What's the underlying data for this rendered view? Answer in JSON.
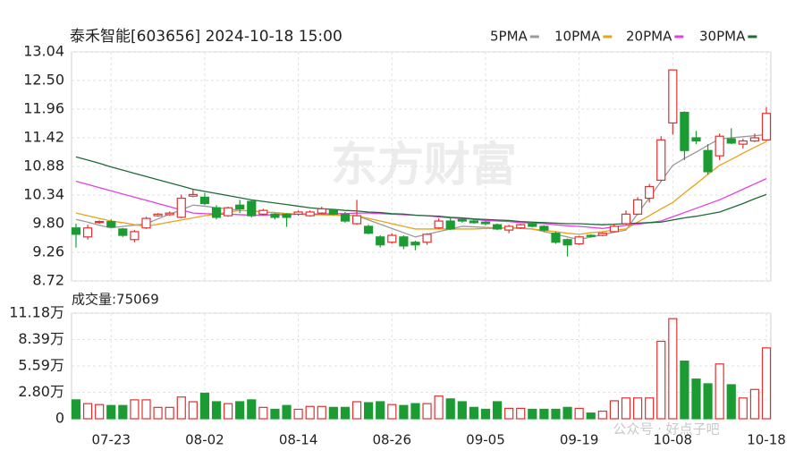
{
  "title": "泰禾智能[603656] 2024-10-18 15:00",
  "watermark": [
    "东方财富",
    "公众号 · 好点子吧"
  ],
  "chart_data": [
    {
      "type": "candlestick",
      "categories": [
        null,
        null,
        null,
        "07-23",
        null,
        null,
        null,
        null,
        null,
        null,
        null,
        "08-02",
        null,
        null,
        null,
        null,
        null,
        null,
        null,
        "08-14",
        null,
        null,
        null,
        null,
        null,
        null,
        null,
        "08-26",
        null,
        null,
        null,
        null,
        null,
        null,
        null,
        "09-05",
        null,
        null,
        null,
        null,
        null,
        null,
        null,
        "09-19",
        null,
        null,
        null,
        null,
        null,
        null,
        null,
        "10-08",
        null,
        null,
        null,
        null,
        null,
        null,
        null,
        "10-18"
      ],
      "open": [
        9.72,
        9.55,
        9.82,
        9.84,
        9.7,
        9.5,
        9.72,
        9.95,
        9.97,
        9.92,
        10.32,
        10.3,
        10.1,
        9.95,
        10.15,
        10.22,
        9.98,
        9.98,
        9.98,
        9.98,
        9.95,
        10.0,
        10.05,
        9.98,
        9.8,
        9.75,
        9.55,
        9.45,
        9.55,
        9.45,
        9.45,
        9.72,
        9.85,
        9.88,
        9.85,
        9.83,
        9.78,
        9.68,
        9.72,
        9.8,
        9.75,
        9.62,
        9.5,
        9.42,
        9.58,
        9.58,
        9.65,
        9.8,
        9.98,
        10.28,
        10.62,
        11.7,
        11.9,
        11.42,
        11.18,
        11.08,
        11.4,
        11.3,
        11.36,
        11.38
      ],
      "close": [
        9.6,
        9.72,
        9.84,
        9.74,
        9.58,
        9.65,
        9.9,
        9.98,
        10.0,
        10.28,
        10.35,
        10.18,
        9.92,
        10.1,
        10.08,
        9.95,
        10.05,
        9.92,
        9.92,
        10.02,
        10.02,
        10.08,
        9.98,
        9.85,
        9.95,
        9.62,
        9.4,
        9.58,
        9.38,
        9.4,
        9.6,
        9.85,
        9.7,
        9.85,
        9.82,
        9.8,
        9.7,
        9.75,
        9.78,
        9.75,
        9.68,
        9.45,
        9.4,
        9.55,
        9.56,
        9.62,
        9.75,
        9.98,
        10.25,
        10.5,
        11.38,
        12.7,
        11.18,
        11.36,
        10.78,
        11.45,
        11.32,
        11.36,
        11.42,
        11.88
      ],
      "low": [
        9.35,
        9.5,
        9.8,
        9.72,
        9.55,
        9.45,
        9.7,
        9.93,
        9.95,
        9.9,
        10.3,
        10.15,
        9.88,
        9.93,
        10.0,
        9.92,
        9.95,
        9.88,
        9.74,
        9.95,
        9.93,
        9.98,
        9.96,
        9.82,
        9.78,
        9.6,
        9.35,
        9.42,
        9.32,
        9.3,
        9.4,
        9.7,
        9.68,
        9.82,
        9.8,
        9.77,
        9.68,
        9.62,
        9.7,
        9.73,
        9.65,
        9.42,
        9.18,
        9.4,
        9.54,
        9.56,
        9.63,
        9.78,
        9.96,
        10.2,
        10.6,
        11.48,
        11.0,
        11.3,
        10.72,
        11.0,
        11.3,
        11.22,
        11.34,
        11.36
      ],
      "high": [
        9.8,
        9.78,
        9.86,
        9.88,
        9.72,
        9.68,
        9.93,
        10.0,
        10.03,
        10.35,
        10.45,
        10.38,
        10.15,
        10.12,
        10.25,
        10.25,
        10.08,
        10.0,
        10.0,
        10.05,
        10.05,
        10.12,
        10.08,
        10.02,
        10.25,
        9.78,
        9.58,
        9.62,
        9.58,
        9.48,
        9.62,
        9.9,
        9.92,
        9.9,
        9.87,
        9.85,
        9.8,
        9.78,
        9.8,
        9.82,
        9.77,
        9.65,
        9.52,
        9.57,
        9.6,
        9.64,
        9.8,
        10.05,
        10.3,
        10.55,
        11.45,
        12.7,
        11.92,
        11.55,
        11.3,
        11.5,
        11.6,
        11.4,
        11.5,
        12.0
      ],
      "series": [
        {
          "name": "5PMA",
          "color": "#9a9a9a",
          "values": [
            9.88,
            9.83,
            9.77,
            9.72,
            9.75,
            9.77,
            9.8,
            9.89,
            9.98,
            10.06,
            10.15,
            10.13,
            10.1,
            10.08,
            10.05,
            10.04,
            10.02,
            10.01,
            9.99,
            9.98,
            9.97,
            9.97,
            9.96,
            9.96,
            9.95,
            9.87,
            9.79,
            9.71,
            9.63,
            9.55,
            9.6,
            9.65,
            9.7,
            9.75,
            9.74,
            9.73,
            9.72,
            9.72,
            9.71,
            9.7,
            9.65,
            9.6,
            9.55,
            9.5,
            9.55,
            9.59,
            9.64,
            9.68,
            9.99,
            10.29,
            10.6,
            10.9,
            11.03,
            11.15,
            11.28,
            11.4,
            11.42,
            11.44,
            11.46,
            11.48
          ]
        },
        {
          "name": "10PMA",
          "color": "#e8a317",
          "values": [
            10.0,
            9.95,
            9.9,
            9.85,
            9.82,
            9.78,
            9.75,
            9.79,
            9.83,
            9.87,
            9.91,
            9.95,
            9.98,
            10.02,
            10.05,
            10.04,
            10.02,
            10.01,
            9.99,
            9.98,
            9.97,
            9.97,
            9.96,
            9.96,
            9.95,
            9.9,
            9.85,
            9.8,
            9.75,
            9.7,
            9.7,
            9.7,
            9.7,
            9.7,
            9.7,
            9.71,
            9.71,
            9.72,
            9.72,
            9.7,
            9.67,
            9.65,
            9.62,
            9.6,
            9.63,
            9.65,
            9.68,
            9.7,
            9.83,
            9.95,
            10.08,
            10.2,
            10.38,
            10.55,
            10.73,
            10.9,
            11.01,
            11.13,
            11.24,
            11.35
          ]
        },
        {
          "name": "20PMA",
          "color": "#e23fe0",
          "values": [
            10.6,
            10.54,
            10.48,
            10.42,
            10.36,
            10.3,
            10.24,
            10.18,
            10.12,
            10.06,
            10.0,
            9.99,
            9.98,
            9.98,
            9.97,
            9.96,
            9.96,
            9.97,
            9.97,
            9.98,
            9.98,
            9.98,
            9.99,
            9.99,
            10.0,
            10.0,
            9.99,
            9.98,
            9.97,
            9.96,
            9.95,
            9.93,
            9.91,
            9.9,
            9.88,
            9.86,
            9.85,
            9.84,
            9.82,
            9.81,
            9.8,
            9.78,
            9.76,
            9.75,
            9.73,
            9.71,
            9.74,
            9.77,
            9.79,
            9.82,
            9.85,
            9.93,
            10.01,
            10.09,
            10.17,
            10.25,
            10.35,
            10.45,
            10.55,
            10.65
          ]
        },
        {
          "name": "30PMA",
          "color": "#1e6b3a",
          "values": [
            11.06,
            11.0,
            10.94,
            10.87,
            10.81,
            10.75,
            10.69,
            10.63,
            10.57,
            10.51,
            10.45,
            10.41,
            10.37,
            10.33,
            10.29,
            10.25,
            10.22,
            10.19,
            10.16,
            10.13,
            10.1,
            10.08,
            10.07,
            10.05,
            10.04,
            10.02,
            10.01,
            9.99,
            9.98,
            9.96,
            9.95,
            9.94,
            9.92,
            9.91,
            9.89,
            9.88,
            9.87,
            9.86,
            9.84,
            9.83,
            9.82,
            9.81,
            9.8,
            9.8,
            9.79,
            9.78,
            9.79,
            9.8,
            9.81,
            9.82,
            9.83,
            9.87,
            9.91,
            9.94,
            9.98,
            10.02,
            10.1,
            10.18,
            10.27,
            10.35
          ]
        }
      ],
      "up_color": "#e03131",
      "down_color": "#1a9c33",
      "ylim": [
        8.72,
        13.04
      ],
      "yticks": [
        13.04,
        {
          "value": 12.5,
          "label": "12.50"
        },
        11.96,
        11.42,
        10.88,
        10.34,
        {
          "value": 9.8,
          "label": "9.80"
        },
        9.26,
        8.72
      ],
      "grid": true
    },
    {
      "type": "bar",
      "title": "成交量:75069",
      "values": [
        2.0,
        1.6,
        1.5,
        1.4,
        1.4,
        2.0,
        2.0,
        1.2,
        1.2,
        2.3,
        1.8,
        2.7,
        1.8,
        1.6,
        1.8,
        2.0,
        1.2,
        1.0,
        1.4,
        1.0,
        1.3,
        1.3,
        1.2,
        1.2,
        1.8,
        1.7,
        1.8,
        1.5,
        1.4,
        1.6,
        1.6,
        2.4,
        2.1,
        1.8,
        1.2,
        1.0,
        1.8,
        1.1,
        1.1,
        1.0,
        1.0,
        1.0,
        1.2,
        1.1,
        0.6,
        0.8,
        1.9,
        2.2,
        2.2,
        2.2,
        8.2,
        10.6,
        6.1,
        4.2,
        3.7,
        5.8,
        3.6,
        2.2,
        3.1,
        7.5
      ],
      "ylim": [
        0,
        11.18
      ],
      "yticks": [
        {
          "value": 11.18,
          "label": "11.18万"
        },
        {
          "value": 8.39,
          "label": "8.39万"
        },
        {
          "value": 5.59,
          "label": "5.59万"
        },
        {
          "value": 2.8,
          "label": "2.80万"
        },
        0
      ],
      "grid": true
    }
  ]
}
